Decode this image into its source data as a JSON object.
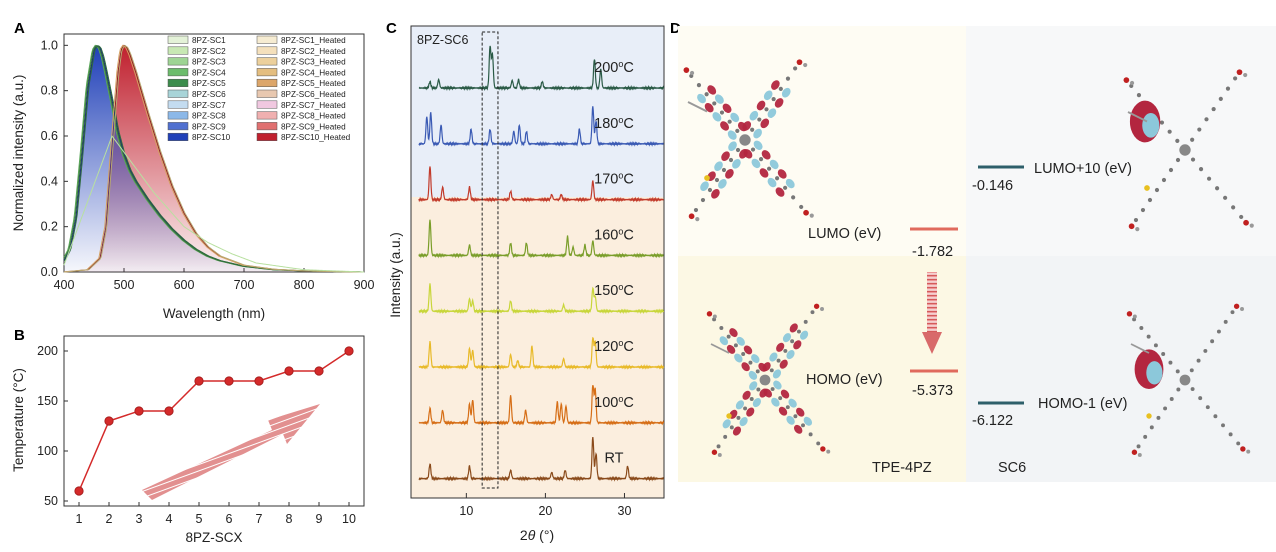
{
  "colors": {
    "blue": "#2040b8",
    "red": "#c0202e",
    "marker": "#d42a2a",
    "lumo_bar": "#e06a5c",
    "sc6_bar": "#2e5f6a",
    "orbital_red": "#b3263f",
    "orbital_cyan": "#8cc8da"
  },
  "panels": {
    "A": {
      "label": "A"
    },
    "B": {
      "label": "B"
    },
    "C": {
      "label": "C"
    },
    "D": {
      "label": "D"
    }
  },
  "chart_data": [
    {
      "type": "area",
      "panel": "A",
      "xlabel": "Wavelength (nm)",
      "ylabel": "Normalized intensity (a.u.)",
      "xlim": [
        400,
        900
      ],
      "ylim": [
        0,
        1.05
      ],
      "xticks": [
        400,
        500,
        600,
        700,
        800,
        900
      ],
      "yticks": [
        0.0,
        0.2,
        0.4,
        0.6,
        0.8,
        1.0
      ],
      "legend_position": "top-right",
      "legend_left": [
        "8PZ-SC1",
        "8PZ-SC2",
        "8PZ-SC3",
        "8PZ-SC4",
        "8PZ-SC5",
        "8PZ-SC6",
        "8PZ-SC7",
        "8PZ-SC8",
        "8PZ-SC9",
        "8PZ-SC10"
      ],
      "legend_right": [
        "8PZ-SC1_Heated",
        "8PZ-SC2_Heated",
        "8PZ-SC3_Heated",
        "8PZ-SC4_Heated",
        "8PZ-SC5_Heated",
        "8PZ-SC6_Heated",
        "8PZ-SC7_Heated",
        "8PZ-SC8_Heated",
        "8PZ-SC9_Heated",
        "8PZ-SC10_Heated"
      ],
      "colors_left": [
        "#e4f2d8",
        "#c8e8b4",
        "#9ed494",
        "#6cbc6c",
        "#3c8c4c",
        "#a8d4d8",
        "#c4dcf0",
        "#8cb8e8",
        "#5070d0",
        "#2040b8"
      ],
      "colors_right": [
        "#f6ecd2",
        "#f4e0bc",
        "#ecd09c",
        "#e4be80",
        "#dca66a",
        "#e8c8b0",
        "#f0c8e0",
        "#f0b0b0",
        "#e07070",
        "#c0202e"
      ],
      "series": [
        {
          "name": "8PZ-SC10",
          "peak": 458,
          "values_desc": "as-prepared",
          "x": [
            400,
            410,
            420,
            430,
            440,
            450,
            455,
            460,
            465,
            470,
            480,
            490,
            500,
            510,
            520,
            540,
            560,
            580,
            600,
            620,
            640,
            660,
            700,
            750,
            800,
            850,
            900
          ],
          "y": [
            0.05,
            0.1,
            0.24,
            0.52,
            0.82,
            0.98,
            1.0,
            0.99,
            0.95,
            0.89,
            0.76,
            0.62,
            0.52,
            0.45,
            0.4,
            0.32,
            0.25,
            0.19,
            0.14,
            0.1,
            0.07,
            0.05,
            0.025,
            0.01,
            0.005,
            0.002,
            0.0
          ]
        },
        {
          "name": "8PZ-SC10_Heated",
          "peak": 500,
          "x": [
            400,
            440,
            460,
            470,
            480,
            490,
            495,
            500,
            505,
            510,
            520,
            530,
            540,
            560,
            580,
            600,
            620,
            640,
            660,
            700,
            750,
            800,
            850,
            900
          ],
          "y": [
            0.0,
            0.01,
            0.06,
            0.2,
            0.55,
            0.88,
            0.98,
            1.0,
            0.99,
            0.96,
            0.88,
            0.79,
            0.7,
            0.53,
            0.38,
            0.26,
            0.17,
            0.11,
            0.07,
            0.03,
            0.012,
            0.005,
            0.002,
            0.0
          ]
        }
      ]
    },
    {
      "type": "line",
      "panel": "B",
      "xlabel": "8PZ-SCX",
      "ylabel": "Temperature (°C)",
      "xlim": [
        0.5,
        10.5
      ],
      "ylim": [
        45,
        215
      ],
      "xticks": [
        1,
        2,
        3,
        4,
        5,
        6,
        7,
        8,
        9,
        10
      ],
      "yticks": [
        50,
        100,
        150,
        200
      ],
      "x": [
        1,
        2,
        3,
        4,
        5,
        6,
        7,
        8,
        9,
        10
      ],
      "y": [
        60,
        130,
        140,
        140,
        170,
        170,
        170,
        180,
        180,
        200
      ]
    },
    {
      "type": "line",
      "panel": "C",
      "title": "8PZ-SC6",
      "xlabel": "2θ (°)",
      "xlabel_main": "2",
      "xlabel_theta": "θ",
      "xlabel_unit": " (°)",
      "ylabel": "Intensity (a.u.)",
      "xlim": [
        3,
        35
      ],
      "xticks": [
        10,
        20,
        30
      ],
      "series": [
        {
          "name": "RT",
          "label": "RT",
          "color": "#8a4a1a",
          "peaks": [
            [
              5.4,
              0.35
            ],
            [
              10.4,
              0.3
            ],
            [
              15.6,
              0.2
            ],
            [
              20.8,
              0.15
            ],
            [
              22.5,
              0.2
            ],
            [
              26.0,
              1.0
            ],
            [
              26.4,
              0.6
            ],
            [
              30.4,
              0.3
            ]
          ]
        },
        {
          "name": "100",
          "label": "100",
          "unit": "oC",
          "color": "#d66e16",
          "peaks": [
            [
              5.4,
              0.35
            ],
            [
              7.0,
              0.3
            ],
            [
              10.4,
              0.45
            ],
            [
              10.8,
              0.55
            ],
            [
              15.6,
              0.65
            ],
            [
              17.5,
              0.3
            ],
            [
              21.5,
              0.5
            ],
            [
              22.0,
              0.45
            ],
            [
              22.6,
              0.4
            ],
            [
              26.0,
              0.9
            ],
            [
              26.3,
              0.8
            ]
          ]
        },
        {
          "name": "120",
          "label": "120",
          "unit": "oC",
          "color": "#e8ba2a",
          "peaks": [
            [
              5.4,
              0.6
            ],
            [
              10.4,
              0.45
            ],
            [
              10.8,
              0.4
            ],
            [
              15.6,
              0.3
            ],
            [
              16.5,
              0.15
            ],
            [
              18.3,
              0.5
            ],
            [
              22.3,
              0.2
            ],
            [
              26.0,
              0.7
            ],
            [
              26.3,
              0.6
            ]
          ]
        },
        {
          "name": "150",
          "label": "150",
          "unit": "oC",
          "color": "#c8d63a",
          "peaks": [
            [
              5.4,
              0.65
            ],
            [
              10.4,
              0.3
            ],
            [
              10.8,
              0.25
            ],
            [
              15.6,
              0.25
            ],
            [
              22.3,
              0.15
            ],
            [
              26.0,
              0.55
            ],
            [
              26.3,
              0.35
            ]
          ]
        },
        {
          "name": "160",
          "label": "160",
          "unit": "oC",
          "color": "#7a9e2a",
          "peaks": [
            [
              5.4,
              0.85
            ],
            [
              10.4,
              0.25
            ],
            [
              15.6,
              0.3
            ],
            [
              17.6,
              0.3
            ],
            [
              22.8,
              0.45
            ],
            [
              23.5,
              0.2
            ],
            [
              25.0,
              0.25
            ],
            [
              26.0,
              0.35
            ]
          ]
        },
        {
          "name": "170",
          "label": "170",
          "unit": "oC",
          "color": "#c23a2a",
          "peaks": [
            [
              5.4,
              0.8
            ],
            [
              7.0,
              0.3
            ],
            [
              10.4,
              0.3
            ],
            [
              15.6,
              0.2
            ],
            [
              20.8,
              0.12
            ],
            [
              22.0,
              0.12
            ],
            [
              26.0,
              0.45
            ]
          ]
        },
        {
          "name": "180",
          "label": "180",
          "unit": "oC",
          "color": "#3a5ab4",
          "peaks": [
            [
              5.0,
              0.65
            ],
            [
              5.5,
              0.75
            ],
            [
              6.8,
              0.45
            ],
            [
              10.6,
              0.35
            ],
            [
              13.0,
              0.35
            ],
            [
              16.0,
              0.3
            ],
            [
              16.7,
              0.45
            ],
            [
              17.6,
              0.3
            ],
            [
              24.3,
              0.35
            ],
            [
              26.0,
              0.9
            ],
            [
              26.4,
              0.55
            ]
          ]
        },
        {
          "name": "200",
          "label": "200",
          "unit": "oC",
          "color": "#2a5a46",
          "peaks": [
            [
              5.4,
              0.15
            ],
            [
              6.5,
              0.2
            ],
            [
              13.0,
              1.0
            ],
            [
              13.3,
              0.8
            ],
            [
              15.8,
              0.18
            ],
            [
              16.6,
              0.2
            ],
            [
              19.6,
              0.15
            ],
            [
              26.2,
              0.7
            ],
            [
              27.0,
              0.45
            ]
          ]
        }
      ],
      "highlight_range": [
        12.0,
        14.0
      ]
    },
    {
      "type": "diagram",
      "panel": "D",
      "levels": [
        {
          "name": "LUMO",
          "label": "LUMO (eV)",
          "value": "-1.782",
          "molecule": "TPE-4PZ"
        },
        {
          "name": "HOMO",
          "label": "HOMO (eV)",
          "value": "-5.373",
          "molecule": "TPE-4PZ"
        },
        {
          "name": "LUMO+10",
          "label": "LUMO+10 (eV)",
          "value": "-0.146",
          "molecule": "SC6"
        },
        {
          "name": "HOMO-1",
          "label": "HOMO-1 (eV)",
          "value": "-6.122",
          "molecule": "SC6"
        }
      ],
      "molecules": [
        "TPE-4PZ",
        "SC6"
      ]
    }
  ]
}
